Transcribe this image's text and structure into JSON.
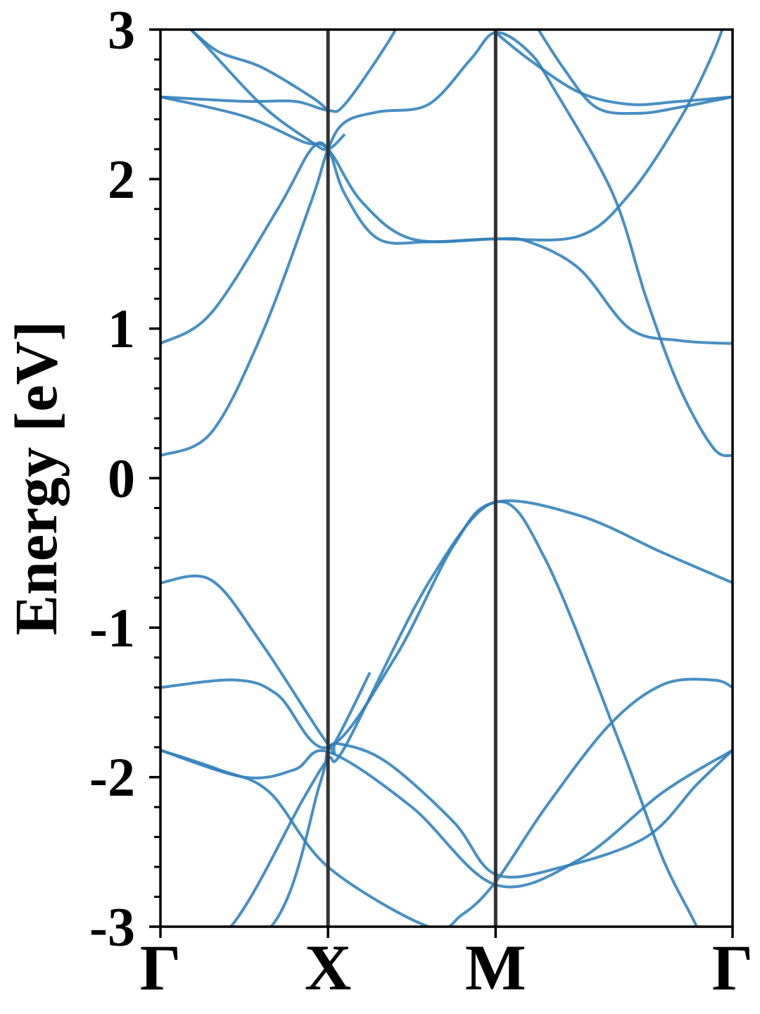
{
  "chart_data": {
    "type": "line",
    "title": "",
    "xlabel": "",
    "ylabel": "Energy [eV]",
    "ylim": [
      -3,
      3
    ],
    "yticks": [
      -3,
      -2,
      -1,
      0,
      1,
      2,
      3
    ],
    "grid": false,
    "legend": "none",
    "kpoints": [
      {
        "label": "Γ",
        "position": 0
      },
      {
        "label": "X",
        "position": 1
      },
      {
        "label": "M",
        "position": 2
      },
      {
        "label": "Γ",
        "position": 3.414
      }
    ],
    "band_color": "#2f7fbb",
    "kpoint_line_color": "#333333",
    "series": [
      {
        "values": [
          [
            0,
            -3.3
          ],
          [
            0.42,
            -3.0
          ],
          [
            0.85,
            -2.15
          ],
          [
            1.0,
            -1.88
          ],
          [
            1.1,
            -1.8
          ],
          [
            1.6,
            -0.7
          ],
          [
            2.0,
            -0.16
          ],
          [
            2.3,
            -0.55
          ],
          [
            2.75,
            -1.8
          ],
          [
            3.0,
            -2.55
          ],
          [
            3.2,
            -3.0
          ],
          [
            3.3,
            -3.3
          ]
        ]
      },
      {
        "values": [
          [
            0,
            -3.3
          ],
          [
            0.66,
            -3.0
          ],
          [
            0.95,
            -2.05
          ],
          [
            1.0,
            -1.82
          ],
          [
            1.08,
            -1.78
          ],
          [
            1.35,
            -1.9
          ],
          [
            1.75,
            -2.3
          ],
          [
            2.0,
            -2.65
          ],
          [
            2.4,
            -2.6
          ],
          [
            2.9,
            -2.4
          ],
          [
            3.2,
            -2.05
          ],
          [
            3.414,
            -1.82
          ]
        ]
      },
      {
        "values": [
          [
            0,
            -1.82
          ],
          [
            0.35,
            -1.95
          ],
          [
            0.65,
            -2.1
          ],
          [
            1.0,
            -2.6
          ],
          [
            1.6,
            -3.0
          ],
          [
            1.8,
            -2.92
          ],
          [
            2.0,
            -2.7
          ],
          [
            2.3,
            -2.2
          ],
          [
            2.68,
            -1.65
          ],
          [
            3.0,
            -1.38
          ],
          [
            3.3,
            -1.35
          ],
          [
            3.414,
            -1.4
          ]
        ]
      },
      {
        "values": [
          [
            0,
            -1.82
          ],
          [
            0.5,
            -2.0
          ],
          [
            0.8,
            -1.95
          ],
          [
            1.0,
            -1.83
          ],
          [
            1.5,
            -2.2
          ],
          [
            2.0,
            -2.72
          ],
          [
            2.5,
            -2.55
          ],
          [
            3.0,
            -2.1
          ],
          [
            3.414,
            -1.82
          ]
        ]
      },
      {
        "values": [
          [
            0,
            -1.4
          ],
          [
            0.45,
            -1.35
          ],
          [
            0.7,
            -1.45
          ],
          [
            1.0,
            -1.8
          ],
          [
            1.4,
            -1.2
          ],
          [
            1.75,
            -0.45
          ],
          [
            2.0,
            -0.16
          ],
          [
            2.5,
            -0.25
          ],
          [
            3.0,
            -0.5
          ],
          [
            3.414,
            -0.7
          ]
        ]
      },
      {
        "values": [
          [
            0,
            -0.7
          ],
          [
            0.3,
            -0.68
          ],
          [
            0.6,
            -1.1
          ],
          [
            1.0,
            -1.78
          ],
          [
            1.05,
            -1.75
          ],
          [
            1.25,
            -1.3
          ]
        ]
      },
      {
        "values": [
          [
            0,
            0.15
          ],
          [
            0.3,
            0.3
          ],
          [
            0.6,
            0.95
          ],
          [
            0.9,
            1.85
          ],
          [
            1.0,
            2.2
          ],
          [
            1.1,
            2.38
          ],
          [
            1.3,
            2.45
          ],
          [
            1.6,
            2.5
          ],
          [
            1.85,
            2.8
          ],
          [
            2.0,
            2.98
          ],
          [
            2.2,
            2.85
          ],
          [
            2.35,
            2.6
          ],
          [
            2.7,
            1.9
          ],
          [
            2.9,
            1.2
          ],
          [
            3.1,
            0.6
          ],
          [
            3.3,
            0.2
          ],
          [
            3.414,
            0.15
          ]
        ]
      },
      {
        "values": [
          [
            0,
            0.9
          ],
          [
            0.3,
            1.1
          ],
          [
            0.7,
            1.8
          ],
          [
            0.9,
            2.2
          ],
          [
            1.0,
            2.2
          ],
          [
            1.1,
            1.9
          ],
          [
            1.3,
            1.6
          ],
          [
            1.6,
            1.58
          ],
          [
            2.0,
            1.6
          ],
          [
            2.2,
            1.58
          ],
          [
            2.5,
            1.4
          ],
          [
            2.8,
            1.0
          ],
          [
            3.1,
            0.92
          ],
          [
            3.414,
            0.9
          ]
        ]
      },
      {
        "values": [
          [
            0,
            2.55
          ],
          [
            0.5,
            2.42
          ],
          [
            0.85,
            2.25
          ],
          [
            1.0,
            2.2
          ],
          [
            1.2,
            1.85
          ],
          [
            1.5,
            1.6
          ],
          [
            2.0,
            1.6
          ],
          [
            2.5,
            1.62
          ],
          [
            2.8,
            1.9
          ],
          [
            3.1,
            2.4
          ],
          [
            3.3,
            2.85
          ],
          [
            3.414,
            3.2
          ]
        ]
      },
      {
        "values": [
          [
            0,
            2.55
          ],
          [
            0.5,
            2.52
          ],
          [
            0.8,
            2.52
          ],
          [
            1.0,
            2.46
          ],
          [
            1.1,
            2.5
          ],
          [
            1.35,
            2.9
          ],
          [
            1.5,
            3.2
          ]
        ]
      },
      {
        "values": [
          [
            0,
            3.2
          ],
          [
            0.2,
            2.98
          ],
          [
            0.6,
            2.5
          ],
          [
            0.9,
            2.25
          ],
          [
            1.0,
            2.2
          ],
          [
            1.1,
            2.3
          ]
        ]
      },
      {
        "values": [
          [
            0.18,
            3.0
          ],
          [
            0.35,
            2.85
          ],
          [
            0.6,
            2.75
          ],
          [
            0.9,
            2.55
          ],
          [
            1.0,
            2.46
          ]
        ]
      },
      {
        "values": [
          [
            2.0,
            2.98
          ],
          [
            2.2,
            2.8
          ],
          [
            2.5,
            2.58
          ],
          [
            2.8,
            2.5
          ],
          [
            3.1,
            2.52
          ],
          [
            3.414,
            2.55
          ]
        ]
      },
      {
        "values": [
          [
            2.2,
            3.1
          ],
          [
            2.4,
            2.75
          ],
          [
            2.6,
            2.48
          ],
          [
            2.85,
            2.44
          ],
          [
            3.1,
            2.48
          ],
          [
            3.414,
            2.55
          ]
        ]
      }
    ]
  }
}
